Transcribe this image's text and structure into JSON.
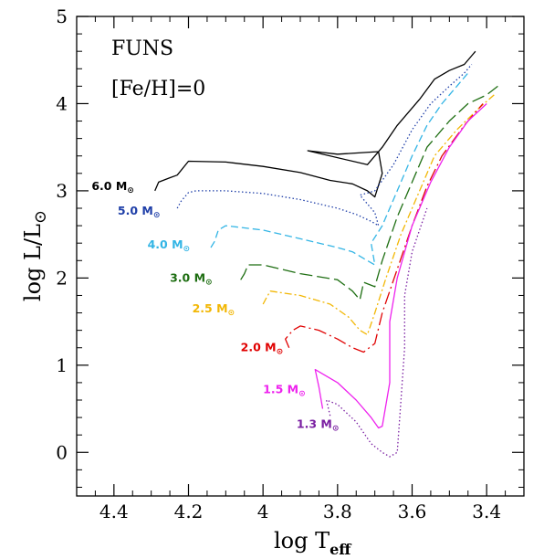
{
  "chart_data": {
    "type": "line",
    "xlabel": "log T",
    "xlabel_sub": "eff",
    "ylabel": "log L/L",
    "ylabel_sub": "⊙",
    "xlim": [
      4.5,
      3.3
    ],
    "ylim": [
      -0.5,
      5.0
    ],
    "x_reversed": true,
    "x_ticks": [
      4.4,
      4.2,
      4,
      3.8,
      3.6,
      3.4
    ],
    "x_tick_labels": [
      "4.4",
      "4.2",
      "4",
      "3.8",
      "3.6",
      "3.4"
    ],
    "y_ticks": [
      0,
      1,
      2,
      3,
      4,
      5
    ],
    "y_tick_labels": [
      "0",
      "1",
      "2",
      "3",
      "4",
      "5"
    ],
    "annotations": [
      "FUNS",
      "[Fe/H]=0"
    ],
    "grid": false,
    "series": [
      {
        "name": "6.0 M",
        "unit": "⊙",
        "color": "#000000",
        "dash": "solid",
        "label_at": [
          4.46,
          3.05
        ],
        "x": [
          4.29,
          4.28,
          4.25,
          4.23,
          4.2,
          4.1,
          4.0,
          3.9,
          3.82,
          3.76,
          3.72,
          3.7,
          3.68,
          3.69,
          3.8,
          3.88,
          3.72,
          3.68,
          3.64,
          3.58,
          3.54,
          3.5,
          3.46,
          3.44,
          3.43
        ],
        "y": [
          3.0,
          3.1,
          3.15,
          3.18,
          3.34,
          3.33,
          3.28,
          3.21,
          3.12,
          3.08,
          3.0,
          2.93,
          3.2,
          3.45,
          3.42,
          3.46,
          3.3,
          3.5,
          3.75,
          4.05,
          4.28,
          4.38,
          4.45,
          4.55,
          4.6
        ]
      },
      {
        "name": "5.0 M",
        "unit": "⊙",
        "color": "#1f3fa8",
        "dash": "dot",
        "label_at": [
          4.39,
          2.77
        ],
        "x": [
          4.23,
          4.22,
          4.2,
          4.18,
          4.1,
          4.0,
          3.9,
          3.8,
          3.75,
          3.71,
          3.69,
          3.7,
          3.74,
          3.7,
          3.65,
          3.6,
          3.55,
          3.5,
          3.46,
          3.44
        ],
        "y": [
          2.8,
          2.88,
          2.98,
          3.0,
          3.0,
          2.97,
          2.9,
          2.8,
          2.73,
          2.65,
          2.6,
          2.75,
          2.95,
          3.0,
          3.3,
          3.7,
          4.0,
          4.2,
          4.35,
          4.45
        ]
      },
      {
        "name": "4.0 M",
        "unit": "⊙",
        "color": "#33b5e5",
        "dash": "dash",
        "label_at": [
          4.31,
          2.38
        ],
        "x": [
          4.14,
          4.13,
          4.12,
          4.1,
          4.0,
          3.9,
          3.8,
          3.76,
          3.72,
          3.7,
          3.71,
          3.68,
          3.64,
          3.6,
          3.56,
          3.52,
          3.48,
          3.45
        ],
        "y": [
          2.35,
          2.42,
          2.55,
          2.6,
          2.55,
          2.45,
          2.35,
          2.3,
          2.2,
          2.15,
          2.4,
          2.6,
          3.0,
          3.4,
          3.75,
          4.0,
          4.2,
          4.35
        ]
      },
      {
        "name": "3.0 M",
        "unit": "⊙",
        "color": "#1e6e12",
        "dash": "longdash",
        "label_at": [
          4.25,
          2.0
        ],
        "x": [
          4.06,
          4.05,
          4.04,
          4.0,
          3.9,
          3.8,
          3.76,
          3.74,
          3.73,
          3.7,
          3.68,
          3.64,
          3.6,
          3.56,
          3.5,
          3.45,
          3.4,
          3.37
        ],
        "y": [
          1.98,
          2.05,
          2.15,
          2.15,
          2.05,
          1.98,
          1.85,
          1.75,
          1.95,
          1.9,
          2.2,
          2.7,
          3.1,
          3.5,
          3.8,
          4.0,
          4.1,
          4.2
        ]
      },
      {
        "name": "2.5 M",
        "unit": "⊙",
        "color": "#f2b705",
        "dash": "dashdot",
        "label_at": [
          4.19,
          1.65
        ],
        "x": [
          4.0,
          3.99,
          3.98,
          3.9,
          3.82,
          3.77,
          3.74,
          3.72,
          3.7,
          3.67,
          3.63,
          3.58,
          3.54,
          3.48,
          3.42,
          3.38
        ],
        "y": [
          1.7,
          1.78,
          1.85,
          1.8,
          1.7,
          1.55,
          1.4,
          1.35,
          1.6,
          2.0,
          2.5,
          3.0,
          3.4,
          3.7,
          3.95,
          4.1
        ]
      },
      {
        "name": "2.0 M",
        "unit": "⊙",
        "color": "#e00000",
        "dash": "longdashdot",
        "label_at": [
          4.06,
          1.2
        ],
        "x": [
          3.93,
          3.94,
          3.92,
          3.9,
          3.85,
          3.8,
          3.76,
          3.73,
          3.7,
          3.68,
          3.64,
          3.6,
          3.56,
          3.52,
          3.46,
          3.41
        ],
        "y": [
          1.2,
          1.3,
          1.4,
          1.45,
          1.4,
          1.3,
          1.2,
          1.15,
          1.25,
          1.6,
          2.1,
          2.6,
          3.05,
          3.4,
          3.75,
          4.0
        ]
      },
      {
        "name": "1.5 M",
        "unit": "⊙",
        "color": "#ee22ee",
        "dash": "solid",
        "label_at": [
          4.0,
          0.72
        ],
        "x": [
          3.84,
          3.85,
          3.86,
          3.8,
          3.75,
          3.71,
          3.69,
          3.68,
          3.66,
          3.66,
          3.64,
          3.6,
          3.55,
          3.5,
          3.45,
          3.4
        ],
        "y": [
          0.5,
          0.75,
          0.95,
          0.8,
          0.6,
          0.4,
          0.28,
          0.3,
          0.8,
          1.5,
          2.0,
          2.6,
          3.1,
          3.5,
          3.8,
          4.0
        ]
      },
      {
        "name": "1.3 M",
        "unit": "⊙",
        "color": "#7a1fa2",
        "dash": "dot",
        "label_at": [
          3.91,
          0.32
        ],
        "x": [
          3.82,
          3.83,
          3.8,
          3.75,
          3.71,
          3.68,
          3.66,
          3.64,
          3.63,
          3.62,
          3.62,
          3.6,
          3.56
        ],
        "y": [
          0.42,
          0.6,
          0.55,
          0.35,
          0.1,
          0.0,
          -0.05,
          0.0,
          0.6,
          1.2,
          1.8,
          2.3,
          2.8
        ]
      }
    ]
  }
}
